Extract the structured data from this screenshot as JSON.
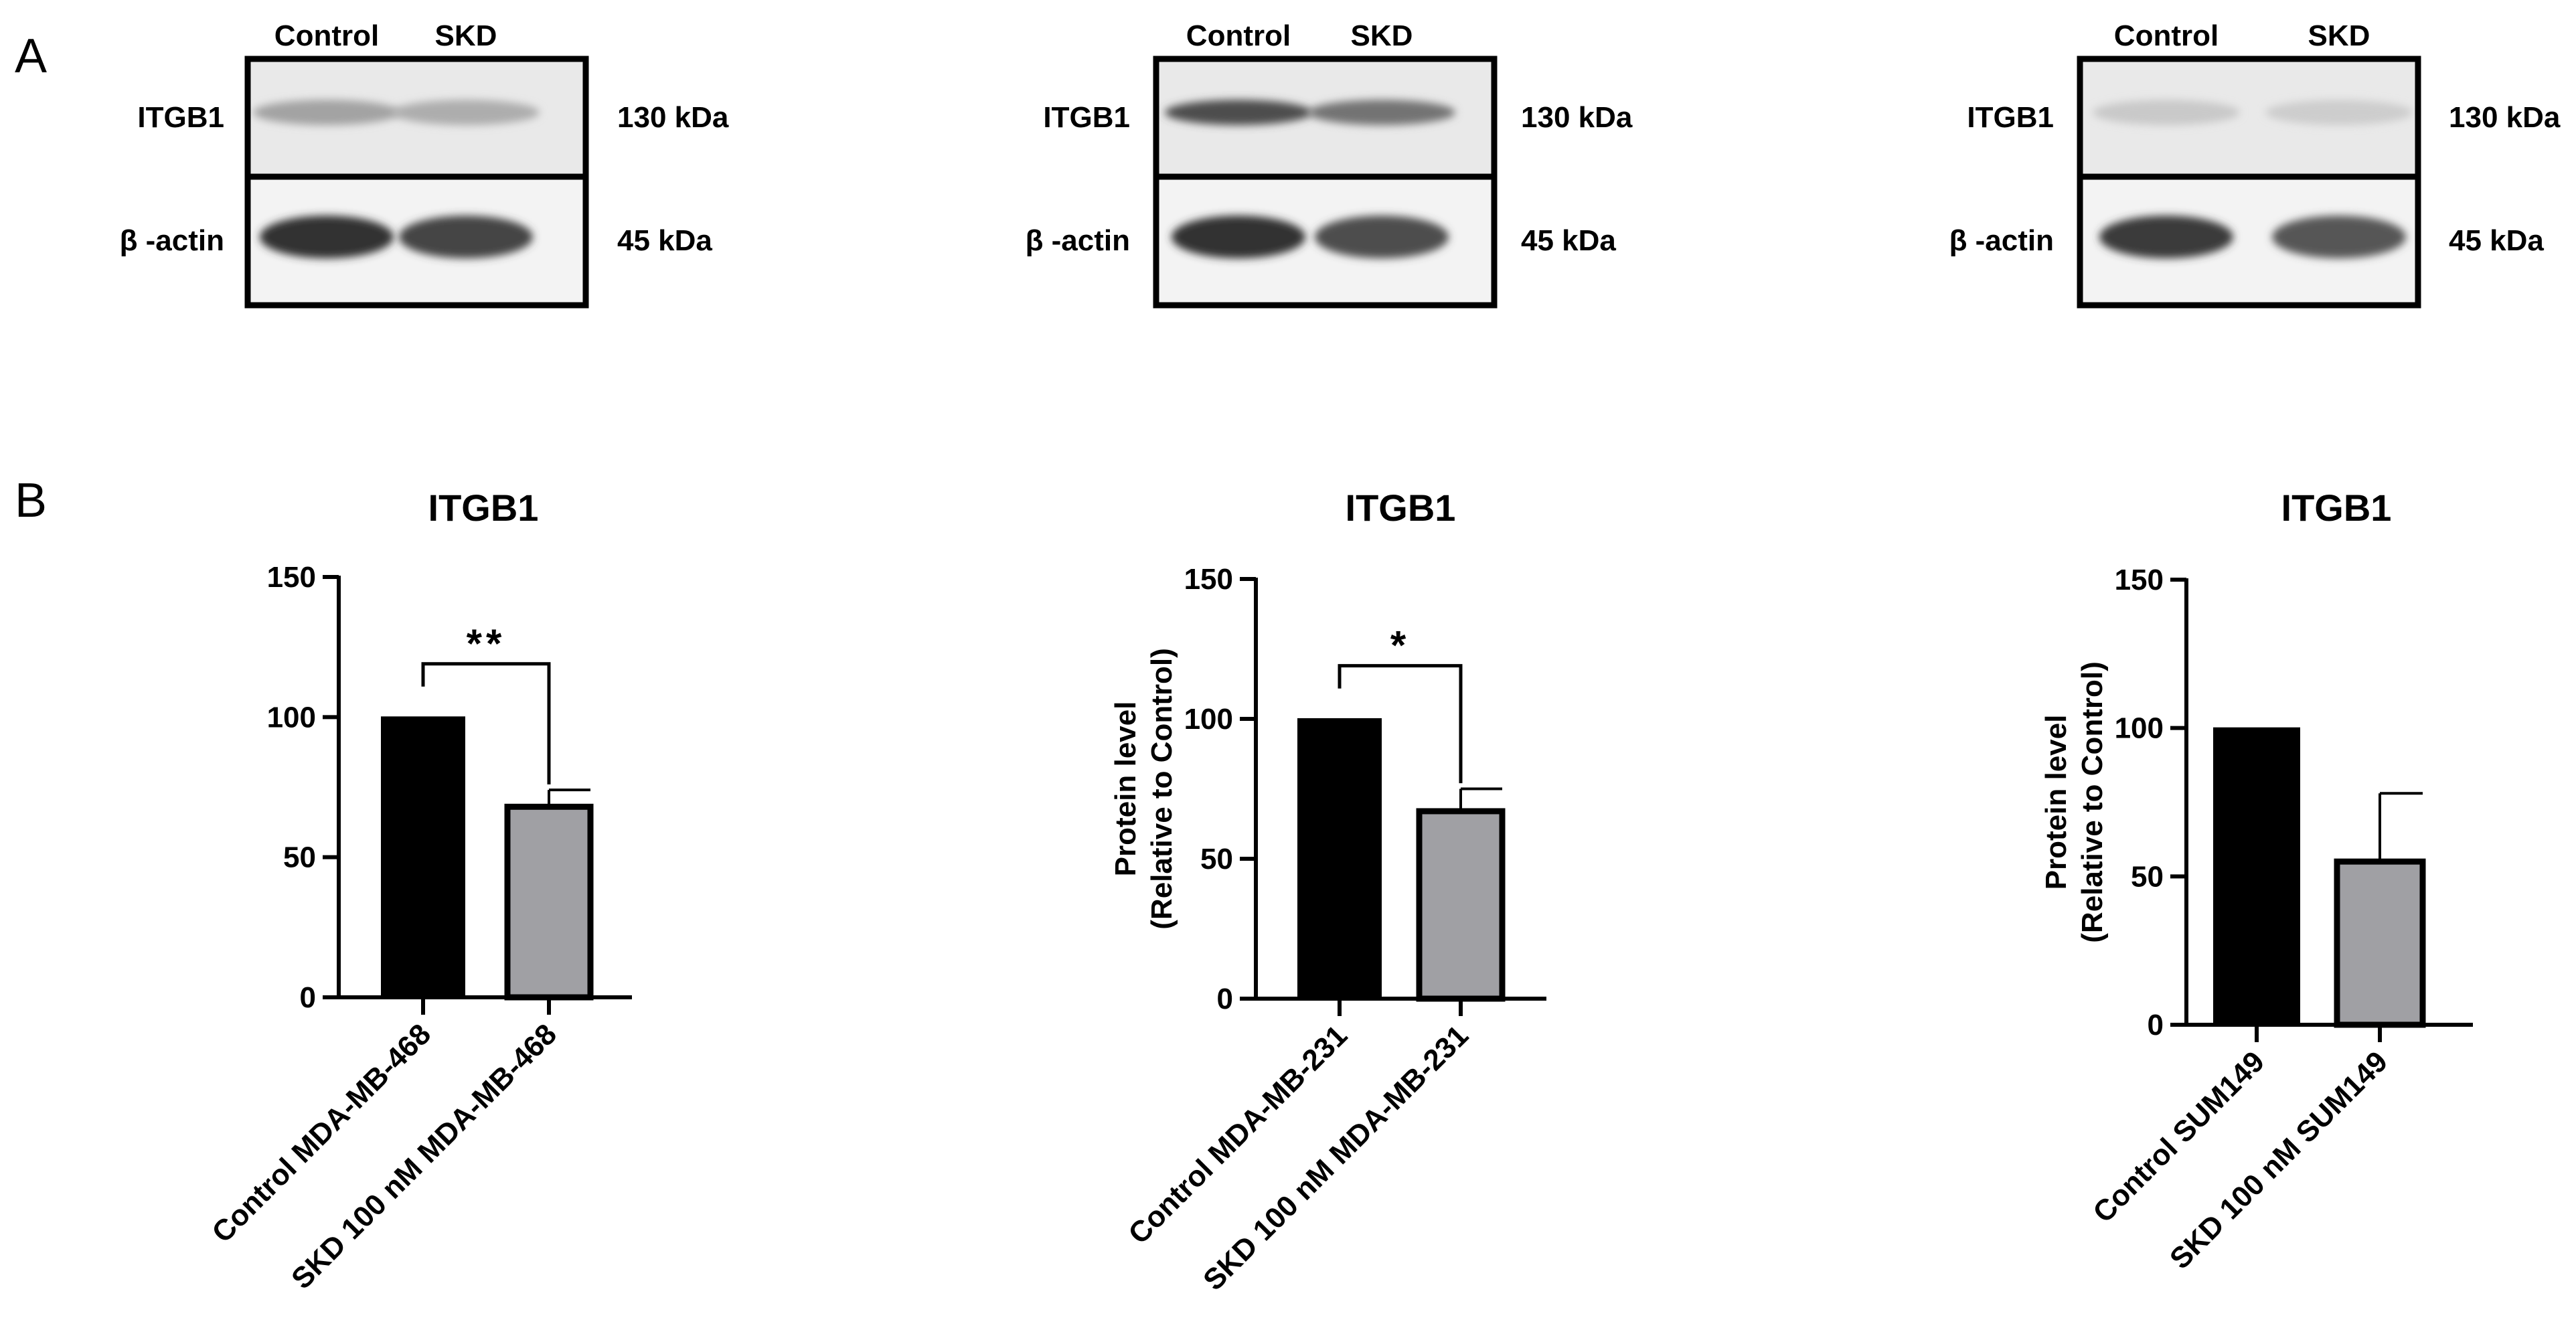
{
  "panels": {
    "a_label": "A",
    "b_label": "B"
  },
  "blots": [
    {
      "lanes": [
        "Control",
        "SKD"
      ],
      "proteins": [
        "ITGB1",
        "β -actin"
      ],
      "sizes": [
        "130 kDa",
        "45 kDa"
      ],
      "band_intensity": {
        "ITGB1": [
          0.3,
          0.25
        ],
        "actin": [
          0.9,
          0.8
        ]
      }
    },
    {
      "lanes": [
        "Control",
        "SKD"
      ],
      "proteins": [
        "ITGB1",
        "β -actin"
      ],
      "sizes": [
        "130 kDa",
        "45 kDa"
      ],
      "band_intensity": {
        "ITGB1": [
          0.75,
          0.55
        ],
        "actin": [
          0.9,
          0.75
        ]
      }
    },
    {
      "lanes": [
        "Control",
        "SKD"
      ],
      "proteins": [
        "ITGB1",
        "β -actin"
      ],
      "sizes": [
        "130 kDa",
        "45 kDa"
      ],
      "band_intensity": {
        "ITGB1": [
          0.1,
          0.08
        ],
        "actin": [
          0.85,
          0.7
        ]
      }
    }
  ],
  "chart_data": [
    {
      "type": "bar",
      "title": "ITGB1",
      "ylabel": "",
      "categories": [
        "Control MDA-MB-468",
        "SKD 100 nM MDA-MB-468"
      ],
      "values": [
        100,
        68
      ],
      "errors": [
        0,
        6
      ],
      "bar_colors": [
        "#000000",
        "#a0a0a4"
      ],
      "ylim": [
        0,
        150
      ],
      "yticks": [
        0,
        50,
        100,
        150
      ],
      "significance": "**",
      "grid": false
    },
    {
      "type": "bar",
      "title": "ITGB1",
      "ylabel": "Protein level\n(Relative to Control)",
      "categories": [
        "Control MDA-MB-231",
        "SKD 100 nM MDA-MB-231"
      ],
      "values": [
        100,
        67
      ],
      "errors": [
        0,
        8
      ],
      "bar_colors": [
        "#000000",
        "#a0a0a4"
      ],
      "ylim": [
        0,
        150
      ],
      "yticks": [
        0,
        50,
        100,
        150
      ],
      "significance": "*",
      "grid": false
    },
    {
      "type": "bar",
      "title": "ITGB1",
      "ylabel": "Protein level\n(Relative to Control)",
      "categories": [
        "Control SUM149",
        "SKD 100 nM SUM149"
      ],
      "values": [
        100,
        55
      ],
      "errors": [
        0,
        23
      ],
      "bar_colors": [
        "#000000",
        "#a0a0a4"
      ],
      "ylim": [
        0,
        150
      ],
      "yticks": [
        0,
        50,
        100,
        150
      ],
      "significance": "",
      "grid": false
    }
  ]
}
